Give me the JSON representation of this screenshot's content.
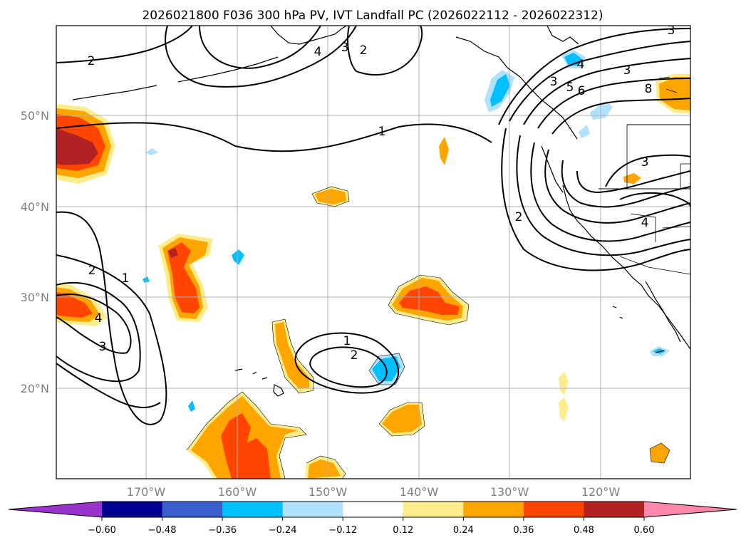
{
  "title": "2026021800 F036 300 hPa PV, IVT Landfall PC (2026022112 - 2026022312)",
  "lat_labels": [
    "50°N",
    "40°N",
    "30°N",
    "20°N"
  ],
  "lon_labels": [
    "170°W",
    "160°W",
    "150°W",
    "140°W",
    "130°W",
    "120°W"
  ],
  "colorbar": {
    "ticks": [
      "−0.60",
      "−0.48",
      "−0.36",
      "−0.24",
      "−0.12",
      "0.12",
      "0.24",
      "0.36",
      "0.48",
      "0.60"
    ],
    "colors": [
      "#9933cc",
      "#000090",
      "#3a5fcd",
      "#00bfff",
      "#b0e2ff",
      "#ffffff",
      "#ffec8b",
      "#ffa500",
      "#ff4500",
      "#b22222",
      "#ff88aa"
    ]
  },
  "contour_labels": [
    "2",
    "4",
    "3",
    "2",
    "3",
    "5",
    "6",
    "4",
    "8",
    "3",
    "1",
    "2",
    "3",
    "4",
    "2",
    "1",
    "4",
    "3",
    "1",
    "2",
    "3"
  ],
  "colors": {
    "frame": "#000000",
    "grid": "#b0b0b0",
    "coast": "#000000",
    "contour": "#000000"
  }
}
